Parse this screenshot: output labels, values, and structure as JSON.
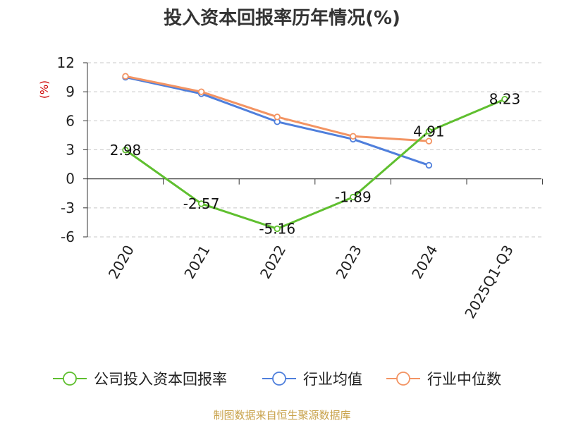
{
  "chart_data": {
    "type": "line",
    "title": "投入资本回报率历年情况(%)",
    "ylabel": "(%)",
    "categories": [
      "2020",
      "2021",
      "2022",
      "2023",
      "2024",
      "2025Q1-Q3"
    ],
    "ylim": [
      -6,
      12
    ],
    "yticks": [
      "12",
      "9",
      "6",
      "3",
      "0",
      "-3",
      "-6"
    ],
    "grid": true,
    "legend_position": "bottom",
    "series": [
      {
        "name": "公司投入资本回报率",
        "color": "#5fbf2f",
        "values": [
          2.98,
          -2.57,
          -5.16,
          -1.89,
          4.91,
          8.23
        ],
        "labels": [
          "2.98",
          "-2.57",
          "-5.16",
          "-1.89",
          "4.91",
          "8.23"
        ]
      },
      {
        "name": "行业均值",
        "color": "#4f7fdc",
        "values": [
          10.5,
          8.8,
          5.9,
          4.1,
          1.4,
          null
        ]
      },
      {
        "name": "行业中位数",
        "color": "#f39463",
        "values": [
          10.6,
          9.0,
          6.4,
          4.4,
          3.9,
          null
        ]
      }
    ],
    "source": "制图数据来自恒生聚源数据库",
    "unit_color": "#cc0000",
    "source_color": "#c8a24a"
  }
}
